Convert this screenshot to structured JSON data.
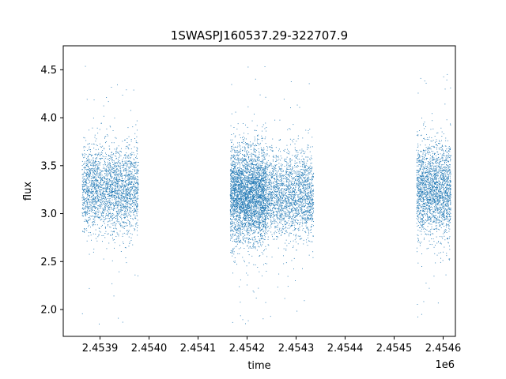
{
  "chart_data": {
    "type": "scatter",
    "title": "1SWASPJ160537.29-322707.9",
    "xlabel": "time",
    "ylabel": "flux",
    "x_offset_label": "1e6",
    "xlim": [
      2453825,
      2454625
    ],
    "ylim": [
      1.72,
      4.75
    ],
    "x_ticks": [
      2453900,
      2454000,
      2454100,
      2454200,
      2454300,
      2454400,
      2454500,
      2454600
    ],
    "x_tick_labels": [
      "2.4539",
      "2.4540",
      "2.4541",
      "2.4542",
      "2.4543",
      "2.4544",
      "2.4545",
      "2.4546"
    ],
    "y_ticks": [
      2.0,
      2.5,
      3.0,
      3.5,
      4.0,
      4.5
    ],
    "y_tick_labels": [
      "2.0",
      "2.5",
      "3.0",
      "3.5",
      "4.0",
      "4.5"
    ],
    "grid": false,
    "legend": "none",
    "series_color": "#1f77b4",
    "series": [
      {
        "observing_seasons": [
          {
            "x_range": [
              2453863,
              2453978
            ],
            "y_median": 3.25,
            "y_core_spread": 0.22,
            "y_min": 1.85,
            "y_max": 4.62,
            "approx_points": 2600
          },
          {
            "x_range": [
              2454165,
              2454238
            ],
            "y_median": 3.2,
            "y_core_spread": 0.25,
            "y_min": 1.85,
            "y_max": 4.62,
            "approx_points": 3600
          },
          {
            "x_range": [
              2454238,
              2454335
            ],
            "y_median": 3.2,
            "y_core_spread": 0.22,
            "y_min": 1.9,
            "y_max": 4.4,
            "approx_points": 2200
          },
          {
            "x_range": [
              2454545,
              2454615
            ],
            "y_median": 3.25,
            "y_core_spread": 0.24,
            "y_min": 1.88,
            "y_max": 4.47,
            "approx_points": 2200
          }
        ]
      }
    ]
  }
}
